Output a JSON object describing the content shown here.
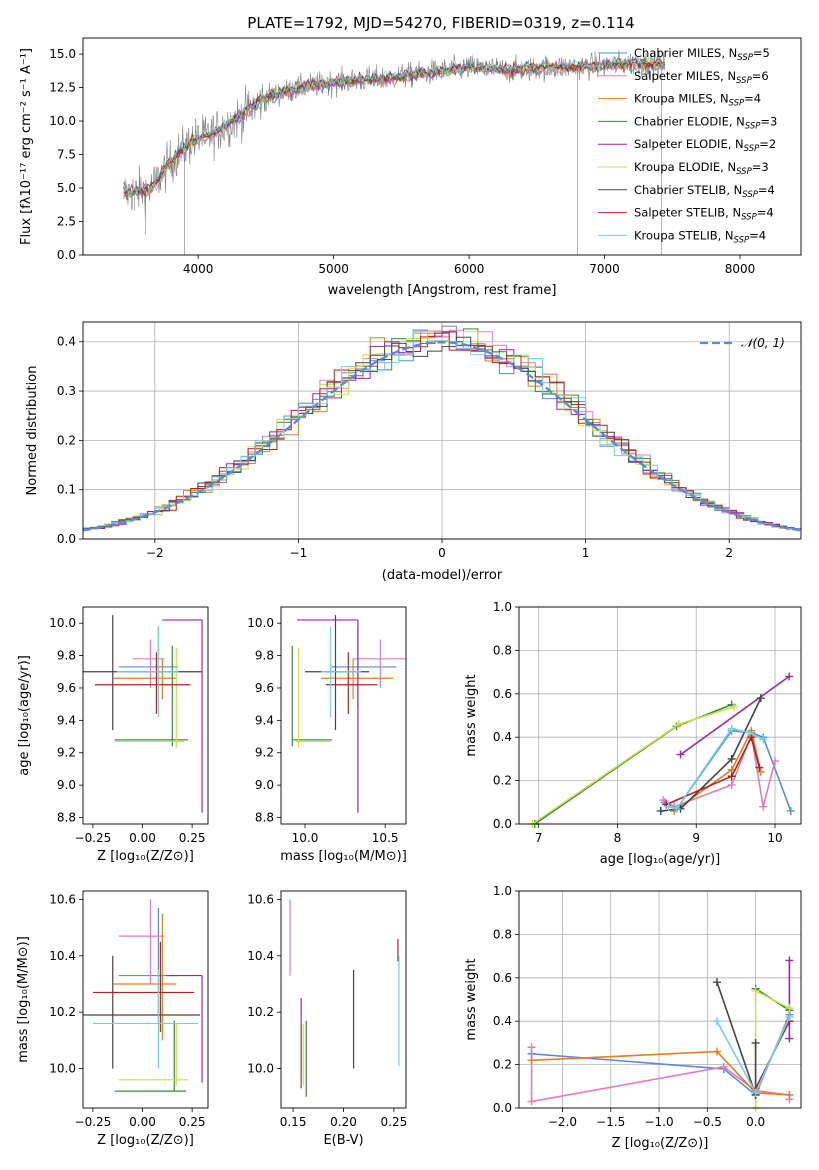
{
  "figure": {
    "title": "PLATE=1792, MJD=54270, FIBERID=0319, z=0.114"
  },
  "legend_top": [
    {
      "label": "Chabrier MILES, N",
      "sub": "SSP",
      "tail": "=5",
      "color": "#5b8ad6"
    },
    {
      "label": "Salpeter MILES, N",
      "sub": "SSP",
      "tail": "=6",
      "color": "#e87ab9"
    },
    {
      "label": "Kroupa MILES, N",
      "sub": "SSP",
      "tail": "=4",
      "color": "#e67e22"
    },
    {
      "label": "Chabrier ELODIE, N",
      "sub": "SSP",
      "tail": "=3",
      "color": "#3a8a3a"
    },
    {
      "label": "Salpeter ELODIE, N",
      "sub": "SSP",
      "tail": "=2",
      "color": "#9b27b0"
    },
    {
      "label": "Kroupa ELODIE, N",
      "sub": "SSP",
      "tail": "=3",
      "color": "#c8e04a"
    },
    {
      "label": "Chabrier STELIB, N",
      "sub": "SSP",
      "tail": "=4",
      "color": "#444444"
    },
    {
      "label": "Salpeter STELIB, N",
      "sub": "SSP",
      "tail": "=4",
      "color": "#b22222"
    },
    {
      "label": "Kroupa STELIB, N",
      "sub": "SSP",
      "tail": "=4",
      "color": "#6fd3e0"
    }
  ],
  "legend_hist": {
    "label": "𝒩(0, 1)",
    "color": "#5b8ad6"
  },
  "chart_data": [
    {
      "id": "spectrum",
      "type": "line",
      "xlabel": "wavelength [Angstrom, rest frame]",
      "ylabel": "Flux [fλ10⁻¹⁷ erg cm⁻² s⁻¹ A⁻¹]",
      "xlim": [
        3150,
        8450
      ],
      "ylim": [
        0,
        16.2
      ],
      "xticks": [
        4000,
        5000,
        6000,
        7000,
        8000
      ],
      "yticks": [
        0.0,
        2.5,
        5.0,
        7.5,
        10.0,
        12.5,
        15.0
      ],
      "continuum": [
        [
          3450,
          4.6
        ],
        [
          3650,
          4.9
        ],
        [
          3800,
          7.0
        ],
        [
          3950,
          8.5
        ],
        [
          4100,
          9.0
        ],
        [
          4300,
          10.3
        ],
        [
          4500,
          11.8
        ],
        [
          4800,
          12.6
        ],
        [
          5100,
          13.0
        ],
        [
          5400,
          13.2
        ],
        [
          5700,
          13.6
        ],
        [
          6000,
          14.0
        ],
        [
          6300,
          13.8
        ],
        [
          6600,
          14.0
        ],
        [
          6900,
          14.1
        ],
        [
          7200,
          14.3
        ],
        [
          7450,
          14.2
        ]
      ]
    },
    {
      "id": "residuals",
      "type": "histogram",
      "xlabel": "(data-model)/error",
      "ylabel": "Normed distribution",
      "xlim": [
        -2.5,
        2.5
      ],
      "ylim": [
        0,
        0.44
      ],
      "xticks": [
        -2,
        -1,
        0,
        1,
        2
      ],
      "yticks": [
        0.0,
        0.1,
        0.2,
        0.3,
        0.4
      ],
      "bin_width": 0.1,
      "grid": true
    },
    {
      "id": "age_vs_Z",
      "type": "errorbar",
      "xlabel": "Z [log₁₀(Z/Z⊙)]",
      "ylabel": "age  [log₁₀(age/yr)]",
      "xlim": [
        -0.3,
        0.33
      ],
      "ylim": [
        8.76,
        10.1
      ],
      "xticks": [
        -0.25,
        0.0,
        0.25
      ],
      "xticklabels": [
        "−0.25",
        "0.00",
        "0.25"
      ],
      "yticks": [
        8.8,
        9.0,
        9.2,
        9.4,
        9.6,
        9.8,
        10.0
      ],
      "points": [
        {
          "c": "#5b8ad6",
          "x": 0.08,
          "xe": [
            -0.12,
            0.18
          ],
          "y": 9.73,
          "ye": [
            9.48,
            9.98
          ]
        },
        {
          "c": "#e87ab9",
          "x": 0.04,
          "xe": [
            -0.05,
            0.11
          ],
          "y": 9.78,
          "ye": [
            9.6,
            9.9
          ]
        },
        {
          "c": "#e67e22",
          "x": 0.1,
          "xe": [
            -0.15,
            0.17
          ],
          "y": 9.66,
          "ye": [
            9.53,
            9.78
          ]
        },
        {
          "c": "#3a8a3a",
          "x": 0.15,
          "xe": [
            -0.14,
            0.23
          ],
          "y": 9.28,
          "ye": [
            9.24,
            9.86
          ]
        },
        {
          "c": "#9b27b0",
          "x": 0.3,
          "xe": [
            0.1,
            0.3
          ],
          "y": 10.02,
          "ye": [
            8.83,
            10.02
          ]
        },
        {
          "c": "#c8e04a",
          "x": 0.17,
          "xe": [
            -0.14,
            0.21
          ],
          "y": 9.27,
          "ye": [
            9.23,
            9.85
          ]
        },
        {
          "c": "#444444",
          "x": -0.15,
          "xe": [
            -0.3,
            0.3
          ],
          "y": 9.7,
          "ye": [
            9.34,
            10.05
          ]
        },
        {
          "c": "#b22222",
          "x": 0.07,
          "xe": [
            -0.24,
            0.24
          ],
          "y": 9.62,
          "ye": [
            9.44,
            9.82
          ]
        },
        {
          "c": "#6fd3e0",
          "x": 0.08,
          "xe": [
            -0.13,
            0.18
          ],
          "y": 9.7,
          "ye": [
            9.42,
            9.98
          ]
        }
      ]
    },
    {
      "id": "age_vs_mass",
      "type": "errorbar",
      "xlabel": "mass [log₁₀(M/M⊙)]",
      "ylabel": "",
      "xlim": [
        9.85,
        10.63
      ],
      "ylim": [
        8.76,
        10.1
      ],
      "xticks": [
        10.0,
        10.5
      ],
      "xticklabels": [
        "10.0",
        "10.5"
      ],
      "yticks": [
        8.8,
        9.0,
        9.2,
        9.4,
        9.6,
        9.8,
        10.0
      ],
      "points": [
        {
          "c": "#5b8ad6",
          "x": 10.33,
          "xe": [
            10.16,
            10.57
          ],
          "y": 9.73,
          "ye": [
            9.48,
            9.98
          ]
        },
        {
          "c": "#e87ab9",
          "x": 10.47,
          "xe": [
            10.3,
            10.63
          ],
          "y": 9.78,
          "ye": [
            9.6,
            9.9
          ]
        },
        {
          "c": "#e67e22",
          "x": 10.3,
          "xe": [
            10.1,
            10.55
          ],
          "y": 9.66,
          "ye": [
            9.53,
            9.78
          ]
        },
        {
          "c": "#3a8a3a",
          "x": 9.92,
          "xe": [
            9.92,
            10.17
          ],
          "y": 9.28,
          "ye": [
            9.24,
            9.86
          ]
        },
        {
          "c": "#9b27b0",
          "x": 10.33,
          "xe": [
            9.95,
            10.33
          ],
          "y": 10.02,
          "ye": [
            8.83,
            10.02
          ]
        },
        {
          "c": "#c8e04a",
          "x": 9.96,
          "xe": [
            9.94,
            10.16
          ],
          "y": 9.27,
          "ye": [
            9.23,
            9.85
          ]
        },
        {
          "c": "#444444",
          "x": 10.19,
          "xe": [
            10.0,
            10.4
          ],
          "y": 9.7,
          "ye": [
            9.34,
            10.05
          ]
        },
        {
          "c": "#b22222",
          "x": 10.27,
          "xe": [
            10.13,
            10.45
          ],
          "y": 9.62,
          "ye": [
            9.44,
            9.82
          ]
        },
        {
          "c": "#6fd3e0",
          "x": 10.16,
          "xe": [
            10.1,
            10.35
          ],
          "y": 9.7,
          "ye": [
            9.42,
            9.98
          ]
        }
      ]
    },
    {
      "id": "weight_vs_age",
      "type": "line",
      "xlabel": "age  [log₁₀(age/yr)]",
      "ylabel": "mass weight",
      "xlim": [
        6.75,
        10.33
      ],
      "ylim": [
        0,
        1.0
      ],
      "xticks": [
        7,
        8,
        9,
        10
      ],
      "yticks": [
        0.0,
        0.2,
        0.4,
        0.6,
        0.8,
        1.0
      ],
      "grid": true,
      "series": [
        {
          "c": "#5b8ad6",
          "x": [
            8.6,
            8.75,
            9.45,
            9.7,
            9.85,
            10.2
          ],
          "y": [
            0.1,
            0.07,
            0.43,
            0.42,
            0.4,
            0.06
          ]
        },
        {
          "c": "#e87ab9",
          "x": [
            8.58,
            8.72,
            9.45,
            9.7,
            9.85,
            10.0
          ],
          "y": [
            0.11,
            0.08,
            0.18,
            0.41,
            0.08,
            0.29
          ]
        },
        {
          "c": "#e67e22",
          "x": [
            8.72,
            9.45,
            9.7,
            9.82
          ],
          "y": [
            0.06,
            0.25,
            0.43,
            0.24
          ]
        },
        {
          "c": "#3a8a3a",
          "x": [
            6.95,
            8.75,
            9.45
          ],
          "y": [
            0.0,
            0.45,
            0.55
          ]
        },
        {
          "c": "#9b27b0",
          "x": [
            8.8,
            10.18
          ],
          "y": [
            0.32,
            0.68
          ]
        },
        {
          "c": "#c8e04a",
          "x": [
            6.92,
            8.78,
            9.48
          ],
          "y": [
            0.0,
            0.46,
            0.54
          ]
        },
        {
          "c": "#444444",
          "x": [
            8.55,
            8.8,
            9.45,
            9.82
          ],
          "y": [
            0.06,
            0.07,
            0.3,
            0.58
          ]
        },
        {
          "c": "#b22222",
          "x": [
            8.62,
            9.45,
            9.7,
            9.8
          ],
          "y": [
            0.09,
            0.22,
            0.4,
            0.26
          ]
        },
        {
          "c": "#6fd3e0",
          "x": [
            8.65,
            8.75,
            9.45,
            9.68,
            9.85
          ],
          "y": [
            0.08,
            0.07,
            0.44,
            0.42,
            0.39
          ]
        }
      ]
    },
    {
      "id": "mass_vs_Z",
      "type": "errorbar",
      "xlabel": "Z [log₁₀(Z/Z⊙)]",
      "ylabel": "mass [log₁₀(M/M⊙)]",
      "xlim": [
        -0.3,
        0.33
      ],
      "ylim": [
        9.86,
        10.63
      ],
      "xticks": [
        -0.25,
        0.0,
        0.25
      ],
      "xticklabels": [
        "−0.25",
        "0.00",
        "0.25"
      ],
      "yticks": [
        10.0,
        10.2,
        10.4,
        10.6
      ],
      "points": [
        {
          "c": "#5b8ad6",
          "x": 0.08,
          "xe": [
            -0.12,
            0.18
          ],
          "y": 10.33,
          "ye": [
            10.16,
            10.57
          ]
        },
        {
          "c": "#e87ab9",
          "x": 0.04,
          "xe": [
            -0.12,
            0.11
          ],
          "y": 10.47,
          "ye": [
            10.3,
            10.6
          ]
        },
        {
          "c": "#e67e22",
          "x": 0.1,
          "xe": [
            -0.15,
            0.17
          ],
          "y": 10.3,
          "ye": [
            10.1,
            10.55
          ]
        },
        {
          "c": "#3a8a3a",
          "x": 0.16,
          "xe": [
            -0.14,
            0.22
          ],
          "y": 9.92,
          "ye": [
            9.92,
            10.17
          ]
        },
        {
          "c": "#9b27b0",
          "x": 0.3,
          "xe": [
            0.12,
            0.3
          ],
          "y": 10.33,
          "ye": [
            9.95,
            10.33
          ]
        },
        {
          "c": "#c8e04a",
          "x": 0.17,
          "xe": [
            -0.12,
            0.23
          ],
          "y": 9.96,
          "ye": [
            9.94,
            10.16
          ]
        },
        {
          "c": "#444444",
          "x": -0.15,
          "xe": [
            -0.3,
            0.29
          ],
          "y": 10.19,
          "ye": [
            10.0,
            10.4
          ]
        },
        {
          "c": "#b22222",
          "x": 0.09,
          "xe": [
            -0.25,
            0.26
          ],
          "y": 10.27,
          "ye": [
            10.13,
            10.45
          ]
        },
        {
          "c": "#6fd3e0",
          "x": 0.08,
          "xe": [
            -0.25,
            0.28
          ],
          "y": 10.16,
          "ye": [
            10.0,
            10.35
          ]
        }
      ]
    },
    {
      "id": "mass_vs_EBV",
      "type": "errorbar",
      "xlabel": "E(B-V)",
      "ylabel": "",
      "xlim": [
        0.138,
        0.262
      ],
      "ylim": [
        9.86,
        10.63
      ],
      "xticks": [
        0.15,
        0.2,
        0.25
      ],
      "xticklabels": [
        "0.15",
        "0.20",
        "0.25"
      ],
      "yticks": [
        10.0,
        10.2,
        10.4,
        10.6
      ],
      "points": [
        {
          "c": "#e87ab9",
          "x": 0.147,
          "xe": [
            0.147,
            0.147
          ],
          "y": 10.47,
          "ye": [
            10.33,
            10.6
          ]
        },
        {
          "c": "#9b27b0",
          "x": 0.158,
          "xe": [
            0.158,
            0.158
          ],
          "y": 10.1,
          "ye": [
            9.93,
            10.25
          ]
        },
        {
          "c": "#c8e04a",
          "x": 0.16,
          "xe": [
            0.16,
            0.16
          ],
          "y": 10.05,
          "ye": [
            9.94,
            10.16
          ]
        },
        {
          "c": "#3a8a3a",
          "x": 0.163,
          "xe": [
            0.163,
            0.163
          ],
          "y": 10.03,
          "ye": [
            9.9,
            10.17
          ]
        },
        {
          "c": "#444444",
          "x": 0.21,
          "xe": [
            0.21,
            0.21
          ],
          "y": 10.19,
          "ye": [
            10.0,
            10.35
          ]
        },
        {
          "c": "#b22222",
          "x": 0.254,
          "xe": [
            0.254,
            0.254
          ],
          "y": 10.42,
          "ye": [
            10.38,
            10.46
          ]
        },
        {
          "c": "#6fd3e0",
          "x": 0.255,
          "xe": [
            0.255,
            0.255
          ],
          "y": 10.2,
          "ye": [
            10.01,
            10.4
          ]
        }
      ]
    },
    {
      "id": "weight_vs_Z",
      "type": "line",
      "xlabel": "Z [log₁₀(Z/Z⊙)]",
      "ylabel": "mass weight",
      "xlim": [
        -2.45,
        0.47
      ],
      "ylim": [
        0,
        1.0
      ],
      "xticks": [
        -2.0,
        -1.5,
        -1.0,
        -0.5,
        0.0
      ],
      "xticklabels": [
        "−2.0",
        "−1.5",
        "−1.0",
        "−0.5",
        "0.0"
      ],
      "yticks": [
        0.0,
        0.2,
        0.4,
        0.6,
        0.8,
        1.0
      ],
      "grid": true,
      "series": [
        {
          "c": "#5b8ad6",
          "x": [
            -2.32,
            -0.33,
            0.0,
            0.35
          ],
          "y": [
            0.25,
            0.18,
            0.06,
            0.43
          ]
        },
        {
          "c": "#e87ab9",
          "x": [
            -2.32,
            -2.32,
            -0.33,
            0.0,
            0.35,
            0.35
          ],
          "y": [
            0.28,
            0.03,
            0.19,
            0.08,
            0.06,
            0.04
          ]
        },
        {
          "c": "#e67e22",
          "x": [
            -2.32,
            -0.4,
            0.0,
            0.35
          ],
          "y": [
            0.22,
            0.26,
            0.07,
            0.06
          ]
        },
        {
          "c": "#3a8a3a",
          "x": [
            0.0,
            0.35
          ],
          "y": [
            0.55,
            0.45
          ]
        },
        {
          "c": "#9b27b0",
          "x": [
            0.35,
            0.35
          ],
          "y": [
            0.32,
            0.68
          ]
        },
        {
          "c": "#c8e04a",
          "x": [
            0.0,
            0.0,
            0.35
          ],
          "y": [
            0.0,
            0.54,
            0.46
          ]
        },
        {
          "c": "#444444",
          "x": [
            -0.4,
            0.0,
            0.0
          ],
          "y": [
            0.58,
            0.06,
            0.3
          ]
        },
        {
          "c": "#b22222",
          "x": [
            0.0,
            0.35
          ],
          "y": [
            0.09,
            0.4
          ]
        },
        {
          "c": "#6fd3e0",
          "x": [
            -0.4,
            0.0,
            0.35
          ],
          "y": [
            0.4,
            0.07,
            0.42
          ]
        }
      ]
    }
  ]
}
